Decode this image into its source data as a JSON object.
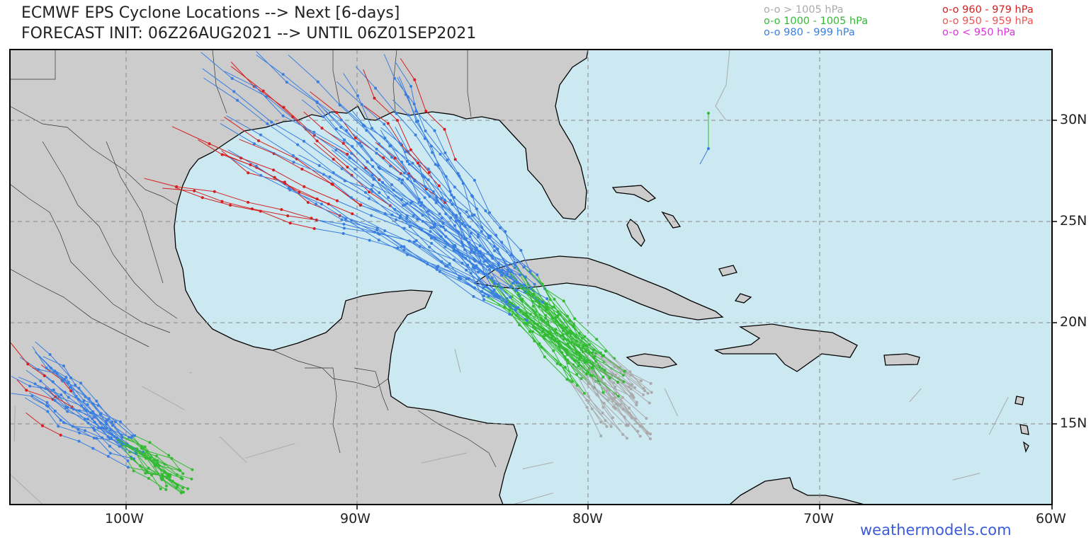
{
  "header": {
    "title_line1": "ECMWF EPS Cyclone Locations --> Next [6-days]",
    "title_line2": "FORECAST INIT: 06Z26AUG2021 --> UNTIL 06Z01SEP2021"
  },
  "legend": [
    {
      "symbol": "o-o",
      "text": "> 1005 hPa",
      "color": "#aaaaaa"
    },
    {
      "symbol": "o-o",
      "text": "1000 - 1005 hPa",
      "color": "#33bb33"
    },
    {
      "symbol": "o-o",
      "text": "980 - 999 hPa",
      "color": "#3a7fe0"
    },
    {
      "symbol": "o-o",
      "text": "960 - 979 hPa",
      "color": "#d42020"
    },
    {
      "symbol": "o-o",
      "text": "950 - 959 hPa",
      "color": "#ee5555"
    },
    {
      "symbol": "o-o",
      "text": "< 950 hPa",
      "color": "#dd33dd"
    }
  ],
  "map": {
    "lon_range": [
      -105,
      -60
    ],
    "lat_range": [
      11,
      33.5
    ],
    "lon_ticks": [
      "100W",
      "90W",
      "80W",
      "70W",
      "60W"
    ],
    "lat_ticks": [
      "30N",
      "25N",
      "20N",
      "15N"
    ],
    "ocean_color": "#cce8f0",
    "land_color": "#cccccc",
    "grid": "dashed"
  },
  "credit": "weathermodels.com"
}
